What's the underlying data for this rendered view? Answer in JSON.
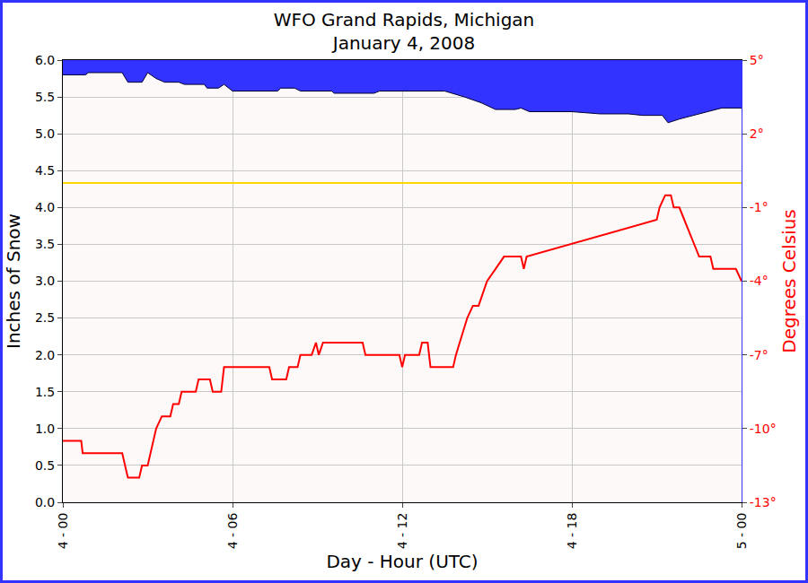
{
  "chart_data": {
    "type": "line",
    "title": "WFO Grand Rapids, Michigan",
    "subtitle": "January 4, 2008",
    "x_label": "Day - Hour (UTC)",
    "y_label": "Inches of Snow",
    "y2_label": "Degrees Celsius",
    "xlim": [
      0,
      24
    ],
    "xticks": [
      {
        "value": 0,
        "label": "4 - 00"
      },
      {
        "value": 6,
        "label": "4 - 06"
      },
      {
        "value": 12,
        "label": "4 - 12"
      },
      {
        "value": 18,
        "label": "4 - 18"
      },
      {
        "value": 24,
        "label": "5 - 00"
      }
    ],
    "ylim": [
      0,
      6
    ],
    "yticks": [
      {
        "value": 0,
        "label": "0.0"
      },
      {
        "value": 0.5,
        "label": "0.5"
      },
      {
        "value": 1,
        "label": "1.0"
      },
      {
        "value": 1.5,
        "label": "1.5"
      },
      {
        "value": 2,
        "label": "2.0"
      },
      {
        "value": 2.5,
        "label": "2.5"
      },
      {
        "value": 3,
        "label": "3.0"
      },
      {
        "value": 3.5,
        "label": "3.5"
      },
      {
        "value": 4,
        "label": "4.0"
      },
      {
        "value": 4.5,
        "label": "4.5"
      },
      {
        "value": 5,
        "label": "5.0"
      },
      {
        "value": 5.5,
        "label": "5.5"
      },
      {
        "value": 6,
        "label": "6.0"
      }
    ],
    "y2lim": [
      -13,
      5
    ],
    "y2ticks": [
      {
        "value": -13,
        "label": "-13°"
      },
      {
        "value": -10,
        "label": "-10°"
      },
      {
        "value": -7,
        "label": "-7°"
      },
      {
        "value": -4,
        "label": "-4°"
      },
      {
        "value": -1,
        "label": "-1°"
      },
      {
        "value": 2,
        "label": "2°"
      },
      {
        "value": 5,
        "label": "5°"
      }
    ],
    "grid": true,
    "series": [
      {
        "type": "area",
        "color": "#3333ff",
        "x": [
          0,
          0.8,
          0.9,
          2.1,
          2.3,
          2.8,
          3.0,
          3.3,
          3.6,
          4.1,
          4.3,
          5.0,
          5.1,
          5.5,
          5.7,
          6.0,
          7.6,
          7.7,
          8.2,
          8.4,
          9.5,
          9.6,
          11.0,
          11.2,
          13.5,
          14.2,
          14.8,
          15.3,
          16.0,
          16.2,
          16.5,
          18.0,
          19.0,
          20.0,
          20.5,
          21.2,
          21.4,
          21.8,
          22.8,
          23.3,
          24
        ],
        "values": [
          5.8,
          5.8,
          5.83,
          5.83,
          5.7,
          5.7,
          5.83,
          5.75,
          5.7,
          5.7,
          5.67,
          5.67,
          5.62,
          5.62,
          5.67,
          5.58,
          5.58,
          5.62,
          5.62,
          5.58,
          5.58,
          5.55,
          5.55,
          5.58,
          5.58,
          5.5,
          5.42,
          5.33,
          5.33,
          5.35,
          5.3,
          5.3,
          5.27,
          5.27,
          5.25,
          5.25,
          5.15,
          5.2,
          5.3,
          5.35,
          5.35
        ]
      },
      {
        "type": "line",
        "color": "#ff0000",
        "axis": "y2",
        "x": [
          0,
          0.65,
          0.7,
          2.1,
          2.2,
          2.3,
          2.7,
          2.8,
          3.0,
          3.1,
          3.3,
          3.5,
          3.8,
          3.9,
          4.1,
          4.2,
          4.7,
          4.8,
          5.2,
          5.3,
          5.6,
          5.7,
          7.3,
          7.4,
          7.9,
          8.0,
          8.3,
          8.4,
          8.8,
          8.95,
          9.05,
          9.2,
          10.6,
          10.7,
          11.9,
          12.0,
          12.1,
          12.6,
          12.7,
          12.9,
          13.0,
          13.8,
          13.9,
          14.3,
          14.5,
          14.7,
          15.0,
          15.3,
          15.6,
          16.2,
          16.3,
          16.4,
          21.0,
          21.1,
          21.3,
          21.5,
          21.6,
          21.8,
          22.5,
          22.9,
          23.0,
          23.8,
          24
        ],
        "values": [
          -10.5,
          -10.5,
          -11,
          -11,
          -11.5,
          -12,
          -12,
          -11.5,
          -11.5,
          -11,
          -10,
          -9.5,
          -9.5,
          -9,
          -9,
          -8.5,
          -8.5,
          -8,
          -8,
          -8.5,
          -8.5,
          -7.5,
          -7.5,
          -8,
          -8,
          -7.5,
          -7.5,
          -7,
          -7,
          -6.5,
          -7,
          -6.5,
          -6.5,
          -7,
          -7,
          -7.5,
          -7,
          -7,
          -6.5,
          -6.5,
          -7.5,
          -7.5,
          -7,
          -5.5,
          -5,
          -5,
          -4,
          -3.5,
          -3,
          -3,
          -3.5,
          -3,
          -1.5,
          -1,
          -0.5,
          -0.5,
          -1,
          -1,
          -3,
          -3,
          -3.5,
          -3.5,
          -4
        ]
      },
      {
        "type": "hline",
        "color": "#ffd700",
        "axis": "y2",
        "values": [
          0
        ]
      }
    ]
  }
}
